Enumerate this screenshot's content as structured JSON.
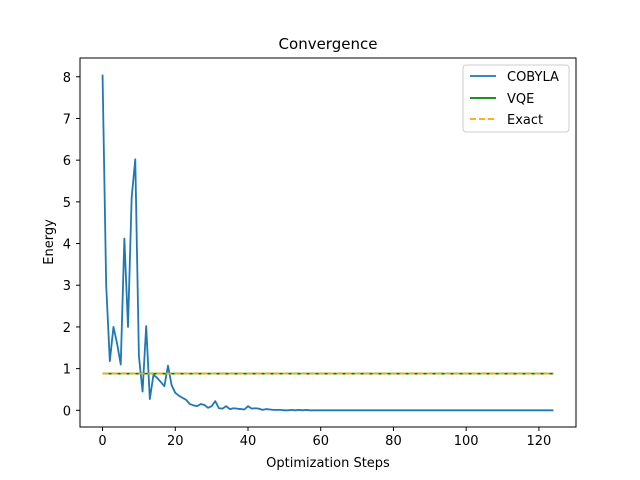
{
  "chart_data": {
    "type": "line",
    "title": "Convergence",
    "xlabel": "Optimization Steps",
    "ylabel": "Energy",
    "xlim": [
      -6.2,
      130.2
    ],
    "ylim": [
      -0.4,
      8.45
    ],
    "xticks": [
      0,
      20,
      40,
      60,
      80,
      100,
      120
    ],
    "yticks": [
      0,
      1,
      2,
      3,
      4,
      5,
      6,
      7,
      8
    ],
    "grid": false,
    "legend_position": "top-right",
    "series": [
      {
        "name": "COBYLA",
        "style": "solid",
        "color": "#1f77b4",
        "x": [
          0,
          1,
          2,
          3,
          4,
          5,
          6,
          7,
          8,
          9,
          10,
          11,
          12,
          13,
          14,
          15,
          16,
          17,
          18,
          19,
          20,
          21,
          22,
          23,
          24,
          25,
          26,
          27,
          28,
          29,
          30,
          31,
          32,
          33,
          34,
          35,
          36,
          37,
          38,
          39,
          40,
          41,
          42,
          43,
          44,
          45,
          46,
          47,
          48,
          49,
          50,
          51,
          52,
          53,
          54,
          55,
          56,
          57,
          60,
          70,
          80,
          90,
          100,
          110,
          120,
          124
        ],
        "y": [
          8.05,
          3.0,
          1.18,
          2.0,
          1.6,
          1.1,
          4.12,
          2.0,
          5.1,
          6.02,
          1.3,
          0.45,
          2.02,
          0.27,
          0.85,
          0.78,
          0.68,
          0.58,
          1.07,
          0.6,
          0.42,
          0.35,
          0.3,
          0.25,
          0.15,
          0.12,
          0.1,
          0.15,
          0.13,
          0.06,
          0.1,
          0.22,
          0.05,
          0.04,
          0.1,
          0.03,
          0.05,
          0.04,
          0.03,
          0.02,
          0.1,
          0.04,
          0.05,
          0.04,
          0.01,
          0.03,
          0.02,
          0.01,
          0.01,
          0.01,
          0.0,
          0.0,
          0.01,
          0.0,
          0.01,
          0.0,
          0.01,
          0.0,
          0.0,
          0.0,
          0.0,
          0.0,
          0.0,
          0.0,
          0.0,
          0.0
        ]
      },
      {
        "name": "VQE",
        "style": "solid",
        "color": "#008000",
        "x": [
          0,
          124
        ],
        "y": [
          0.88,
          0.88
        ]
      },
      {
        "name": "Exact",
        "style": "dashed",
        "color": "#ffa500",
        "x": [
          0,
          124
        ],
        "y": [
          0.88,
          0.88
        ]
      }
    ]
  }
}
